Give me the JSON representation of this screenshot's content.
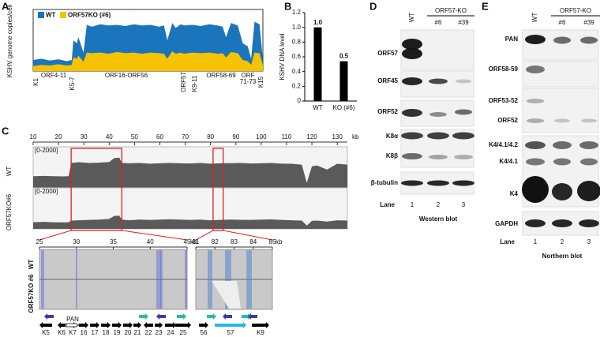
{
  "chart_data": [
    {
      "type": "area",
      "panel": "A",
      "ylabel": "KSHV genome copies/cell",
      "x": [
        0,
        5,
        10,
        15,
        20,
        23,
        24,
        26,
        27,
        30,
        32,
        35,
        40,
        45,
        50,
        55,
        60,
        65,
        70,
        75,
        78,
        80,
        83,
        85,
        88,
        90,
        95,
        100,
        105,
        110,
        113,
        115,
        118,
        120,
        122,
        125,
        128,
        130,
        132,
        135,
        137
      ],
      "xlim": [
        0,
        137
      ],
      "ylim": [
        0,
        100
      ],
      "series": [
        {
          "name": "WT",
          "color": "#1b75bc",
          "values": [
            18,
            20,
            17,
            19,
            16,
            18,
            50,
            45,
            55,
            30,
            75,
            72,
            76,
            74,
            75,
            73,
            76,
            74,
            75,
            72,
            74,
            50,
            78,
            70,
            76,
            74,
            75,
            73,
            76,
            74,
            72,
            55,
            78,
            76,
            74,
            45,
            40,
            20,
            80,
            76,
            18
          ]
        },
        {
          "name": "ORF57KO (#6)",
          "color": "#f6c300",
          "values": [
            8,
            10,
            9,
            11,
            9,
            10,
            22,
            20,
            25,
            15,
            30,
            29,
            30,
            28,
            31,
            29,
            30,
            28,
            30,
            29,
            28,
            20,
            32,
            28,
            30,
            28,
            30,
            29,
            30,
            28,
            29,
            22,
            31,
            30,
            29,
            18,
            16,
            10,
            30,
            29,
            9
          ]
        }
      ],
      "annotations": [
        "K1",
        "ORF4-11",
        "K5-7",
        "ORF16-ORF56",
        "ORF57",
        "K9-11",
        "ORF58-69",
        "ORF",
        "71-73",
        "K15"
      ]
    },
    {
      "type": "bar",
      "panel": "B",
      "ylabel": "KSHV DNA level",
      "categories": [
        "WT",
        "KO (#6)"
      ],
      "values": [
        1,
        0.54
      ],
      "value_labels": [
        "1.0",
        "0.5"
      ],
      "color": "#000000",
      "ylim": [
        0,
        1.2
      ],
      "yticks": [
        0,
        0.2,
        0.4,
        0.6,
        0.8,
        {
          "value": 1,
          "label": "1.0"
        },
        1.2
      ]
    },
    {
      "type": "area",
      "panel": "C",
      "xunit": "kb",
      "range_label": "[0-2000]",
      "x": [
        10,
        14,
        18,
        22,
        24,
        25,
        28,
        32,
        36,
        40,
        42,
        44,
        45,
        48,
        52,
        56,
        60,
        64,
        68,
        72,
        76,
        80,
        84,
        88,
        92,
        96,
        100,
        104,
        108,
        112,
        116,
        118,
        120,
        122,
        126,
        130,
        134
      ],
      "xlim": [
        10,
        134
      ],
      "xticks": [
        10,
        20,
        30,
        40,
        50,
        60,
        70,
        80,
        90,
        100,
        110,
        120,
        130
      ],
      "ylim": [
        0,
        2000
      ],
      "series": [
        {
          "name": "WT",
          "color": "#5a5a5a",
          "values": [
            700,
            720,
            700,
            690,
            700,
            1500,
            1550,
            1500,
            1520,
            1560,
            1800,
            1820,
            1500,
            1480,
            1500,
            1460,
            1480,
            1500,
            1480,
            1470,
            1500,
            1460,
            1480,
            1490,
            1500,
            1470,
            1480,
            1500,
            1460,
            1450,
            1400,
            300,
            1300,
            1350,
            1100,
            1450,
            1400
          ]
        },
        {
          "name": "ORF57KO#6",
          "color": "#5a5a5a",
          "values": [
            400,
            420,
            400,
            390,
            400,
            500,
            520,
            540,
            560,
            600,
            780,
            800,
            560,
            520,
            560,
            540,
            560,
            580,
            560,
            540,
            560,
            520,
            540,
            560,
            550,
            540,
            560,
            570,
            540,
            520,
            500,
            200,
            480,
            500,
            440,
            520,
            500
          ]
        }
      ],
      "zoom": [
        {
          "xlim": [
            25,
            45
          ],
          "xticks": [
            25,
            30,
            35,
            40,
            45
          ],
          "xunit": "kb"
        },
        {
          "xlim": [
            81,
            85
          ],
          "xticks": [
            81,
            82,
            83,
            84,
            85
          ],
          "xunit": "kb"
        }
      ],
      "zoom_track_labels": [
        "WT",
        "ORF57KO #6"
      ],
      "pan_label": "PAN",
      "genes": [
        "K5",
        "K6",
        "K7",
        "16",
        "17",
        "18",
        "19",
        "20",
        "21",
        "22",
        "23",
        "24",
        "25",
        "56",
        "57",
        "K9"
      ]
    }
  ],
  "western_blot": {
    "panel": "D",
    "wt": "WT",
    "group": "ORF57-KO",
    "clones": [
      "#6",
      "#39"
    ],
    "rows": [
      "ORF57",
      "ORF45",
      "ORF52",
      "K8α",
      "K8β",
      "β-tubulin"
    ],
    "lane_label": "Lane",
    "lanes": [
      "1",
      "2",
      "3"
    ],
    "caption": "Western blot"
  },
  "northern_blot": {
    "panel": "E",
    "wt": "WT",
    "group": "ORF57-KO",
    "clones": [
      "#6",
      "#39"
    ],
    "rows": [
      "PAN",
      "ORF58-59",
      "ORF53-52",
      "ORF52",
      "K4/4.1/4.2",
      "K4/4.1",
      "K4",
      "GAPDH"
    ],
    "lane_label": "Lane",
    "lanes": [
      "1",
      "2",
      "3"
    ],
    "caption": "Northern blot"
  }
}
